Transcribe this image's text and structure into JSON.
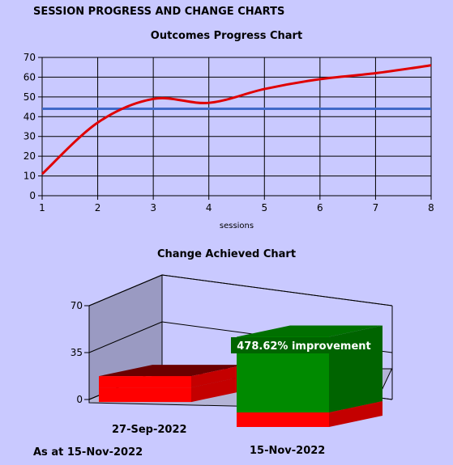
{
  "heading": "SESSION PROGRESS AND CHANGE CHARTS",
  "as_at": "As at 15-Nov-2022",
  "chart_data": [
    {
      "type": "line",
      "title": "Outcomes Progress Chart",
      "xlabel": "sessions",
      "ylabel": "",
      "x": [
        1,
        2,
        3,
        4,
        5,
        6,
        7,
        8
      ],
      "xlim": [
        1,
        8
      ],
      "ylim": [
        0,
        70
      ],
      "yticks": [
        0,
        10,
        20,
        30,
        40,
        50,
        60,
        70
      ],
      "grid": true,
      "series": [
        {
          "color": "#e00000",
          "values": [
            11,
            37,
            49,
            47,
            54,
            59,
            62,
            66
          ]
        },
        {
          "color": "#4169c8",
          "values": [
            44,
            44,
            44,
            44,
            44,
            44,
            44,
            44
          ]
        }
      ]
    },
    {
      "type": "bar",
      "title": "Change Achieved Chart",
      "categories": [
        "27-Sep-2022",
        "15-Nov-2022"
      ],
      "values": [
        9,
        54
      ],
      "ylim": [
        0,
        70
      ],
      "yticks": [
        0,
        35,
        70
      ],
      "annotation": "478.62% improvement",
      "colors": {
        "base": "#ff0000",
        "first": "#6b0000",
        "second": "#007000"
      }
    }
  ]
}
